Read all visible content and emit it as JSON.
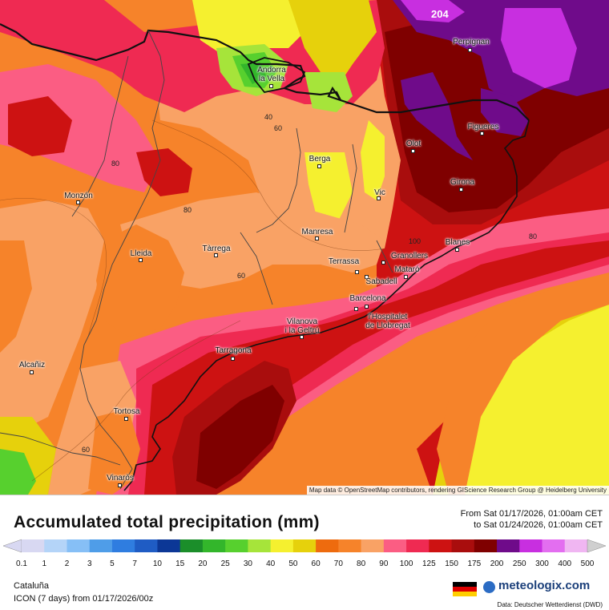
{
  "map": {
    "attribution": "Map data © OpenStreetMap contributors, rendering GIScience Research Group @ Heidelberg University",
    "max_label": "204",
    "cities": [
      {
        "name": "Perpignan",
        "id": "perpignan"
      },
      {
        "name": "Andorra\nla Vella",
        "id": "andorra"
      },
      {
        "name": "Figueres",
        "id": "figueres"
      },
      {
        "name": "Olot",
        "id": "olot"
      },
      {
        "name": "Berga",
        "id": "berga"
      },
      {
        "name": "Girona",
        "id": "girona"
      },
      {
        "name": "Vic",
        "id": "vic"
      },
      {
        "name": "Monzón",
        "id": "monzon"
      },
      {
        "name": "Manresa",
        "id": "manresa"
      },
      {
        "name": "Blanes",
        "id": "blanes"
      },
      {
        "name": "Tàrrega",
        "id": "tarrega"
      },
      {
        "name": "Lleida",
        "id": "lleida"
      },
      {
        "name": "Granollers",
        "id": "granollers"
      },
      {
        "name": "Terrassa",
        "id": "terrassa"
      },
      {
        "name": "Mataró",
        "id": "mataro"
      },
      {
        "name": "Sabadell",
        "id": "sabadell"
      },
      {
        "name": "Barcelona",
        "id": "barcelona"
      },
      {
        "name": "l'Hospitalet\nde Llobregat",
        "id": "hospitalet"
      },
      {
        "name": "Vilanova\ni la Geltrú",
        "id": "vilanova"
      },
      {
        "name": "Tarragona",
        "id": "tarragona"
      },
      {
        "name": "Alcañiz",
        "id": "alcaniz"
      },
      {
        "name": "Tortosa",
        "id": "tortosa"
      },
      {
        "name": "Vinaròs",
        "id": "vinaros"
      }
    ],
    "contour_labels": [
      "40",
      "60",
      "80",
      "80",
      "60",
      "80",
      "60",
      "100"
    ]
  },
  "legend": {
    "title": "Accumulated total precipitation (mm)",
    "from": "From Sat 01/17/2026, 01:00am CET",
    "to": "to Sat 01/24/2026, 01:00am CET",
    "ticks": [
      "0.1",
      "1",
      "2",
      "3",
      "5",
      "7",
      "10",
      "15",
      "20",
      "25",
      "30",
      "40",
      "50",
      "60",
      "70",
      "80",
      "90",
      "100",
      "125",
      "150",
      "175",
      "200",
      "250",
      "300",
      "400",
      "500"
    ],
    "colors": [
      "#d8d8f2",
      "#b4d4f8",
      "#86bff6",
      "#4f9de8",
      "#2f7de0",
      "#1f5cc4",
      "#0c3796",
      "#1b8e2a",
      "#33b62b",
      "#57d02e",
      "#a6e43a",
      "#f5f02f",
      "#e6d10c",
      "#ee6b0e",
      "#f6832a",
      "#f9a265",
      "#fb5d83",
      "#ef2a52",
      "#cd1212",
      "#a90d0d",
      "#7f0000",
      "#6f0b8a",
      "#c82fe0",
      "#e36ef0",
      "#f0b6f2",
      "#cfcfcf"
    ],
    "region": "Cataluña",
    "model": "ICON (7 days) from 01/17/2026/00z",
    "brand": "meteologix.com",
    "data_source": "Data: Deutscher Wetterdienst (DWD)"
  }
}
